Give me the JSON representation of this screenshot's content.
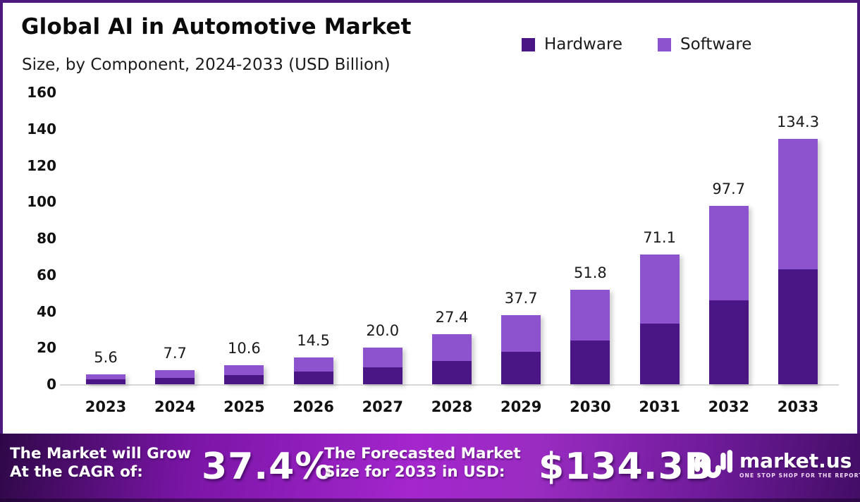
{
  "header": {
    "title": "Global AI in Automotive Market",
    "subtitle": "Size, by Component, 2024-2033 (USD Billion)"
  },
  "legend": [
    {
      "label": "Hardware",
      "color": "#4a1585"
    },
    {
      "label": "Software",
      "color": "#8d52ce"
    }
  ],
  "chart_data": {
    "type": "bar",
    "stacked": true,
    "title": "Global AI in Automotive Market Size, by Component, 2024-2033 (USD Billion)",
    "categories": [
      "2023",
      "2024",
      "2025",
      "2026",
      "2027",
      "2028",
      "2029",
      "2030",
      "2031",
      "2032",
      "2033"
    ],
    "series": [
      {
        "name": "Hardware",
        "color": "#4a1585",
        "values": [
          2.6,
          3.6,
          5.0,
          6.8,
          9.3,
          12.8,
          17.7,
          24.1,
          33.2,
          45.8,
          62.9
        ]
      },
      {
        "name": "Software",
        "color": "#8d52ce",
        "values": [
          3.0,
          4.1,
          5.6,
          7.7,
          10.7,
          14.6,
          20.0,
          27.7,
          37.9,
          51.9,
          71.4
        ]
      }
    ],
    "totals": [
      5.6,
      7.7,
      10.6,
      14.5,
      20.0,
      27.4,
      37.7,
      51.8,
      71.1,
      97.7,
      134.3
    ],
    "total_labels": [
      "5.6",
      "7.7",
      "10.6",
      "14.5",
      "20.0",
      "27.4",
      "37.7",
      "51.8",
      "71.1",
      "97.7",
      "134.3"
    ],
    "xlabel": "",
    "ylabel": "",
    "ylim": [
      0,
      160
    ],
    "ytick_step": 20,
    "grid": false,
    "legend_position": "top-right"
  },
  "banner": {
    "cagr_label_line1": "The Market will Grow",
    "cagr_label_line2": "At the CAGR of:",
    "cagr_value": "37.4%",
    "forecast_label_line1": "The Forecasted Market",
    "forecast_label_line2": "Size for 2033 in USD:",
    "forecast_value": "$134.3B",
    "logo_text": "market.us",
    "logo_tagline": "ONE STOP SHOP FOR THE REPORTS"
  },
  "colors": {
    "hardware": "#4a1585",
    "software": "#8d52ce",
    "frame_border": "#4c1a7d",
    "baseline": "#d8d8d8",
    "banner_gradient": [
      "#2f0848",
      "#7a15a6",
      "#a426cd",
      "#9a2cc2",
      "#6f1b9a",
      "#430d66"
    ]
  }
}
